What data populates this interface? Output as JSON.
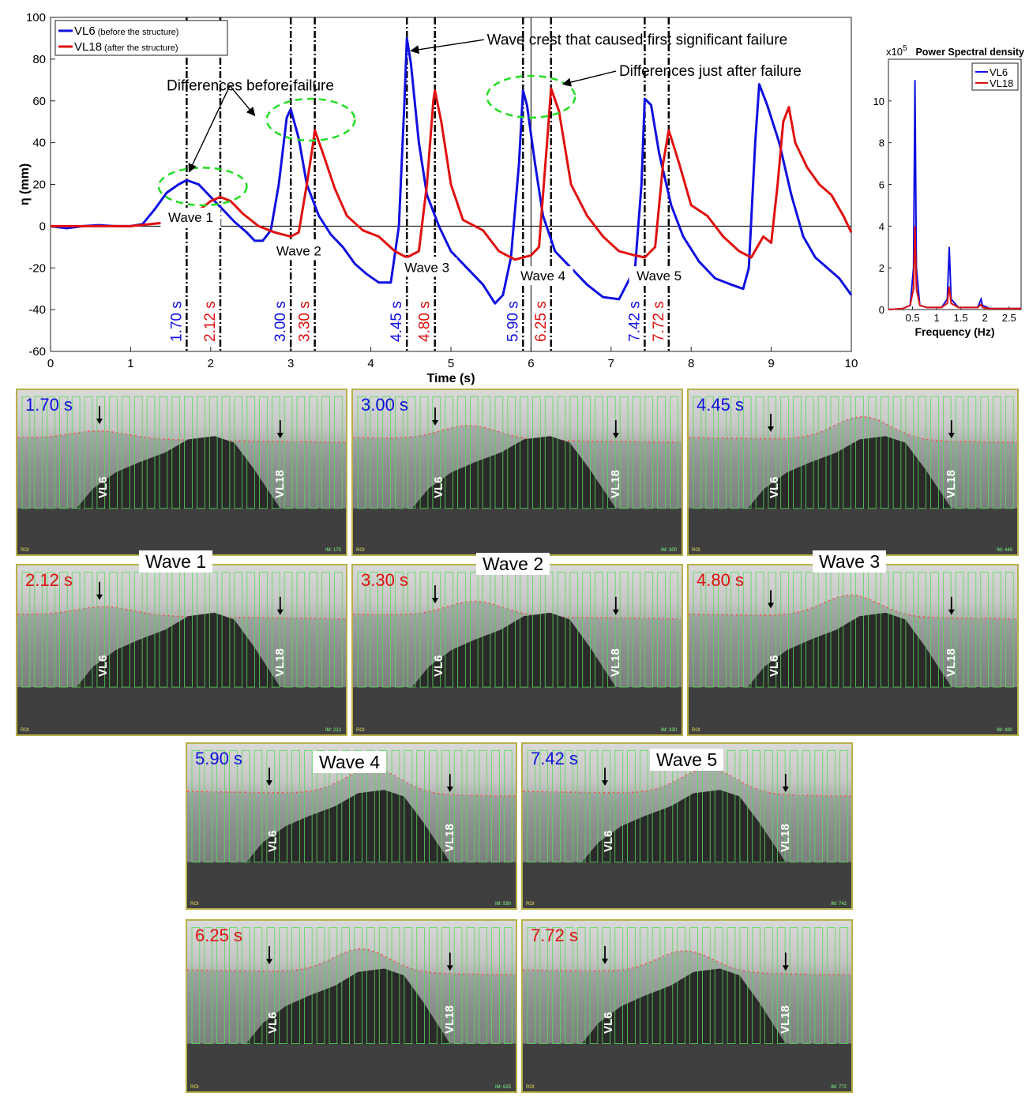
{
  "main_chart": {
    "chart_data": {
      "type": "line",
      "xlabel": "Time (s)",
      "ylabel": "η (mm)",
      "xlim": [
        0,
        10
      ],
      "ylim": [
        -60,
        100
      ],
      "xticks": [
        0,
        1,
        2,
        3,
        4,
        5,
        6,
        7,
        8,
        9,
        10
      ],
      "yticks": [
        -60,
        -40,
        -20,
        0,
        20,
        40,
        60,
        80,
        100
      ],
      "legend": "top-left",
      "series": [
        {
          "name": "VL6",
          "legend_note": "(before the structure)",
          "color": "#1010e0",
          "points": [
            [
              0,
              0
            ],
            [
              0.2,
              -1
            ],
            [
              0.4,
              0
            ],
            [
              0.6,
              0.5
            ],
            [
              0.8,
              0
            ],
            [
              1.0,
              0
            ],
            [
              1.15,
              1
            ],
            [
              1.3,
              8
            ],
            [
              1.45,
              16
            ],
            [
              1.6,
              20
            ],
            [
              1.7,
              22
            ],
            [
              1.85,
              20
            ],
            [
              2.0,
              14
            ],
            [
              2.15,
              8
            ],
            [
              2.3,
              2
            ],
            [
              2.45,
              -3
            ],
            [
              2.55,
              -7
            ],
            [
              2.65,
              -7
            ],
            [
              2.75,
              -2
            ],
            [
              2.85,
              20
            ],
            [
              2.95,
              52
            ],
            [
              3.0,
              56
            ],
            [
              3.1,
              42
            ],
            [
              3.2,
              20
            ],
            [
              3.35,
              5
            ],
            [
              3.5,
              -4
            ],
            [
              3.65,
              -10
            ],
            [
              3.8,
              -18
            ],
            [
              3.95,
              -23
            ],
            [
              4.1,
              -27
            ],
            [
              4.25,
              -27
            ],
            [
              4.35,
              0
            ],
            [
              4.42,
              60
            ],
            [
              4.45,
              90
            ],
            [
              4.5,
              78
            ],
            [
              4.6,
              40
            ],
            [
              4.7,
              15
            ],
            [
              4.85,
              0
            ],
            [
              5.0,
              -12
            ],
            [
              5.2,
              -20
            ],
            [
              5.4,
              -28
            ],
            [
              5.55,
              -37
            ],
            [
              5.65,
              -33
            ],
            [
              5.75,
              -15
            ],
            [
              5.85,
              30
            ],
            [
              5.9,
              65
            ],
            [
              5.95,
              58
            ],
            [
              6.05,
              30
            ],
            [
              6.15,
              5
            ],
            [
              6.3,
              -12
            ],
            [
              6.5,
              -20
            ],
            [
              6.7,
              -28
            ],
            [
              6.9,
              -34
            ],
            [
              7.1,
              -35
            ],
            [
              7.3,
              -20
            ],
            [
              7.38,
              20
            ],
            [
              7.42,
              61
            ],
            [
              7.5,
              58
            ],
            [
              7.6,
              35
            ],
            [
              7.75,
              10
            ],
            [
              7.9,
              -5
            ],
            [
              8.1,
              -17
            ],
            [
              8.3,
              -25
            ],
            [
              8.5,
              -28
            ],
            [
              8.65,
              -30
            ],
            [
              8.72,
              -20
            ],
            [
              8.8,
              40
            ],
            [
              8.85,
              68
            ],
            [
              8.95,
              58
            ],
            [
              9.1,
              40
            ],
            [
              9.25,
              15
            ],
            [
              9.4,
              -5
            ],
            [
              9.55,
              -15
            ],
            [
              9.7,
              -20
            ],
            [
              9.85,
              -25
            ],
            [
              10.0,
              -33
            ]
          ]
        },
        {
          "name": "VL18",
          "legend_note": "(after the structure)",
          "color": "#e01010",
          "points": [
            [
              0,
              0
            ],
            [
              0.5,
              0
            ],
            [
              1.0,
              0
            ],
            [
              1.5,
              2
            ],
            [
              1.8,
              6
            ],
            [
              2.0,
              12
            ],
            [
              2.12,
              14
            ],
            [
              2.25,
              12
            ],
            [
              2.4,
              6
            ],
            [
              2.6,
              0
            ],
            [
              2.8,
              -3
            ],
            [
              3.0,
              -5
            ],
            [
              3.1,
              -3
            ],
            [
              3.2,
              20
            ],
            [
              3.28,
              40
            ],
            [
              3.3,
              46
            ],
            [
              3.4,
              35
            ],
            [
              3.55,
              18
            ],
            [
              3.7,
              5
            ],
            [
              3.9,
              -2
            ],
            [
              4.1,
              -5
            ],
            [
              4.3,
              -12
            ],
            [
              4.45,
              -15
            ],
            [
              4.6,
              -12
            ],
            [
              4.7,
              20
            ],
            [
              4.78,
              60
            ],
            [
              4.8,
              65
            ],
            [
              4.88,
              50
            ],
            [
              5.0,
              20
            ],
            [
              5.15,
              3
            ],
            [
              5.4,
              -2
            ],
            [
              5.6,
              -12
            ],
            [
              5.8,
              -16
            ],
            [
              6.0,
              -14
            ],
            [
              6.1,
              -10
            ],
            [
              6.2,
              40
            ],
            [
              6.25,
              66
            ],
            [
              6.35,
              55
            ],
            [
              6.5,
              20
            ],
            [
              6.7,
              5
            ],
            [
              6.9,
              -5
            ],
            [
              7.1,
              -12
            ],
            [
              7.3,
              -14
            ],
            [
              7.42,
              -15
            ],
            [
              7.55,
              -10
            ],
            [
              7.65,
              30
            ],
            [
              7.72,
              46
            ],
            [
              7.85,
              30
            ],
            [
              8.0,
              10
            ],
            [
              8.2,
              5
            ],
            [
              8.4,
              -5
            ],
            [
              8.6,
              -12
            ],
            [
              8.75,
              -15
            ],
            [
              8.9,
              -5
            ],
            [
              9.0,
              -8
            ],
            [
              9.08,
              20
            ],
            [
              9.15,
              50
            ],
            [
              9.22,
              57
            ],
            [
              9.3,
              40
            ],
            [
              9.45,
              28
            ],
            [
              9.6,
              20
            ],
            [
              9.75,
              15
            ],
            [
              9.9,
              5
            ],
            [
              10.0,
              -3
            ]
          ]
        }
      ],
      "vlines": [
        {
          "x": 1.7,
          "label": "1.70 s",
          "color": "#1010e0"
        },
        {
          "x": 2.12,
          "label": "2.12 s",
          "color": "#e01010"
        },
        {
          "x": 3.0,
          "label": "3.00 s",
          "color": "#1010e0"
        },
        {
          "x": 3.3,
          "label": "3.30 s",
          "color": "#e01010"
        },
        {
          "x": 4.45,
          "label": "4.45 s",
          "color": "#1010e0"
        },
        {
          "x": 4.8,
          "label": "4.80 s",
          "color": "#e01010"
        },
        {
          "x": 5.9,
          "label": "5.90 s",
          "color": "#1010e0"
        },
        {
          "x": 6.25,
          "label": "6.25 s",
          "color": "#e01010"
        },
        {
          "x": 7.42,
          "label": "7.42 s",
          "color": "#1010e0"
        },
        {
          "x": 7.72,
          "label": "7.72 s",
          "color": "#e01010"
        }
      ],
      "thin_vline_x": 6.0,
      "wave_labels": [
        {
          "text": "Wave 1",
          "x": 1.75,
          "y": 2
        },
        {
          "text": "Wave 2",
          "x": 3.1,
          "y": -14
        },
        {
          "text": "Wave 3",
          "x": 4.7,
          "y": -22
        },
        {
          "text": "Wave 4",
          "x": 6.15,
          "y": -26
        },
        {
          "text": "Wave 5",
          "x": 7.6,
          "y": -26
        }
      ],
      "annotations": [
        {
          "text": "Differences before failure",
          "tx": 1.45,
          "ty": 65,
          "arrows": [
            [
              1.73,
              26
            ],
            [
              2.55,
              53
            ]
          ]
        },
        {
          "text": "Wave crest that caused first significant failure",
          "tx": 5.45,
          "ty": 87,
          "arrows": [
            [
              4.5,
              84
            ]
          ]
        },
        {
          "text": "Differences just after failure",
          "tx": 7.1,
          "ty": 72,
          "arrows": [
            [
              6.4,
              68
            ]
          ]
        }
      ],
      "ellipses": [
        {
          "cx": 1.9,
          "cy": 19,
          "rx": 0.55,
          "ry": 9
        },
        {
          "cx": 3.25,
          "cy": 51,
          "rx": 0.55,
          "ry": 10
        },
        {
          "cx": 6.0,
          "cy": 62,
          "rx": 0.55,
          "ry": 10
        }
      ]
    }
  },
  "psd_chart": {
    "chart_data": {
      "type": "line",
      "title": "Power Spectral density",
      "multiplier": "x10",
      "multiplier_exp": "5",
      "xlabel": "Frequency (Hz)",
      "xlim": [
        0,
        2.75
      ],
      "ylim": [
        0,
        12
      ],
      "xticks": [
        0.5,
        1,
        1.5,
        2,
        2.5
      ],
      "xticklabels": [
        "0.5",
        "1",
        "1.5",
        "2",
        "2.5"
      ],
      "yticks": [
        0,
        2,
        4,
        6,
        8,
        10
      ],
      "legend": "top-right",
      "series": [
        {
          "name": "VL6",
          "color": "#1010e0",
          "points": [
            [
              0,
              0
            ],
            [
              0.3,
              0.05
            ],
            [
              0.45,
              0.2
            ],
            [
              0.52,
              2
            ],
            [
              0.55,
              11
            ],
            [
              0.58,
              2
            ],
            [
              0.65,
              0.2
            ],
            [
              0.8,
              0.1
            ],
            [
              1.1,
              0.1
            ],
            [
              1.22,
              0.5
            ],
            [
              1.26,
              3
            ],
            [
              1.3,
              0.5
            ],
            [
              1.45,
              0.1
            ],
            [
              1.85,
              0.1
            ],
            [
              1.92,
              0.5
            ],
            [
              1.95,
              0.2
            ],
            [
              2.1,
              0.05
            ],
            [
              2.75,
              0.05
            ]
          ]
        },
        {
          "name": "VL18",
          "color": "#e01010",
          "points": [
            [
              0,
              0
            ],
            [
              0.3,
              0.05
            ],
            [
              0.45,
              0.2
            ],
            [
              0.52,
              1
            ],
            [
              0.55,
              4
            ],
            [
              0.58,
              1
            ],
            [
              0.65,
              0.2
            ],
            [
              0.8,
              0.1
            ],
            [
              1.1,
              0.1
            ],
            [
              1.22,
              0.3
            ],
            [
              1.26,
              1.1
            ],
            [
              1.3,
              0.3
            ],
            [
              1.45,
              0.1
            ],
            [
              1.85,
              0.1
            ],
            [
              1.92,
              0.25
            ],
            [
              1.95,
              0.1
            ],
            [
              2.1,
              0.05
            ],
            [
              2.75,
              0.05
            ]
          ]
        }
      ]
    }
  },
  "frames": [
    {
      "time": "1.70 s",
      "color": "blue",
      "crest": 0.0,
      "im": "IM: 170"
    },
    {
      "time": "3.00 s",
      "color": "blue",
      "crest": 0.3,
      "im": "IM: 300"
    },
    {
      "time": "4.45 s",
      "color": "blue",
      "crest": 0.8,
      "im": "IM: 445"
    },
    {
      "time": "2.12 s",
      "color": "red",
      "crest": 0.05,
      "im": "IM: 212"
    },
    {
      "time": "3.30 s",
      "color": "red",
      "crest": 0.35,
      "im": "IM: 330"
    },
    {
      "time": "4.80 s",
      "color": "red",
      "crest": 0.7,
      "im": "IM: 480"
    },
    {
      "time": "5.90 s",
      "color": "blue",
      "crest": 0.9,
      "im": "IM: 590"
    },
    {
      "time": "7.42 s",
      "color": "blue",
      "crest": 0.9,
      "im": "IM: 742"
    },
    {
      "time": "6.25 s",
      "color": "red",
      "crest": 0.8,
      "im": "IM: 625"
    },
    {
      "time": "7.72 s",
      "color": "red",
      "crest": 0.7,
      "im": "IM: 772"
    }
  ],
  "frame_labels": {
    "probe_a": "VL6",
    "probe_b": "VL18",
    "roi": "ROI"
  },
  "wave_captions": [
    "Wave 1",
    "Wave 2",
    "Wave 3",
    "Wave 4",
    "Wave 5"
  ]
}
